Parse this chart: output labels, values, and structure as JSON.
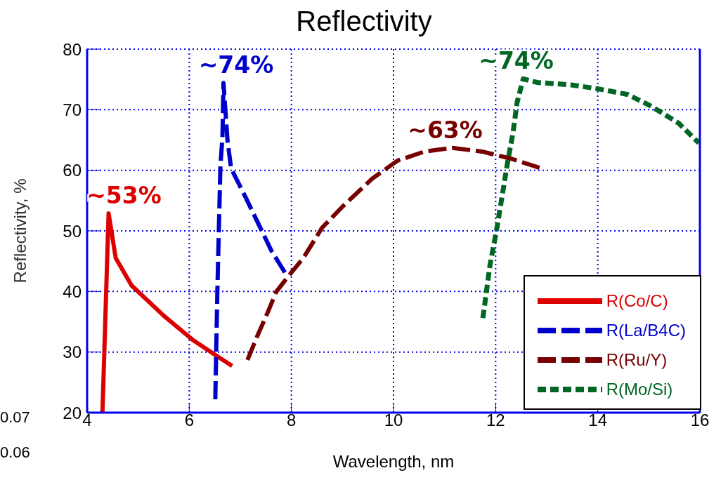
{
  "chart_data": {
    "type": "line",
    "title": "Reflectivity",
    "xlabel": "Wavelength, nm",
    "ylabel": "Reflectivity, %",
    "xlim": [
      4,
      16
    ],
    "xticks": [
      4,
      6,
      8,
      10,
      12,
      14,
      16
    ],
    "ylim": [
      20,
      80
    ],
    "yticks": [
      20,
      30,
      40,
      50,
      60,
      70,
      80
    ],
    "grid": true,
    "legend": "bottom right",
    "marker": "none",
    "series": [
      {
        "name": "R(Co/C)",
        "color": "#dd0000",
        "line_style": "solid",
        "x": [
          4.3,
          4.42,
          4.56,
          4.87,
          5.5,
          6.07,
          6.55,
          6.84
        ],
        "values": [
          20,
          52.9,
          45.5,
          41,
          36,
          32,
          29.3,
          27.7
        ]
      },
      {
        "name": "R(La/B4C)",
        "color": "#0000cc",
        "line_style": "dashed",
        "x": [
          6.51,
          6.55,
          6.61,
          6.65,
          6.67,
          6.75,
          6.82,
          7.1,
          7.61,
          7.89
        ],
        "values": [
          22.2,
          40,
          60.7,
          65.5,
          74.4,
          64.8,
          60.3,
          55.6,
          46.7,
          42.9
        ]
      },
      {
        "name": "R(Ru/Y)",
        "color": "#770000",
        "line_style": "dashed",
        "x": [
          7.14,
          7.33,
          7.55,
          7.7,
          7.93,
          8.24,
          8.6,
          9.0,
          9.58,
          10.08,
          10.61,
          11.15,
          11.73,
          12.31,
          12.9
        ],
        "values": [
          28.7,
          32.6,
          36.8,
          39.9,
          42.4,
          45.6,
          50.5,
          54,
          58.6,
          61.6,
          63.1,
          63.7,
          63.1,
          61.9,
          60.3
        ]
      },
      {
        "name": "R(Mo/Si)",
        "color": "#006622",
        "line_style": "dotted",
        "x": [
          11.75,
          11.89,
          12.02,
          12.13,
          12.24,
          12.34,
          12.42,
          12.54,
          12.81,
          13.48,
          13.97,
          14.59,
          15.04,
          15.58,
          15.98
        ],
        "values": [
          35.6,
          44.4,
          50.2,
          55.9,
          61.6,
          66.2,
          71.2,
          75.1,
          74.5,
          74.1,
          73.5,
          72.5,
          70.6,
          67.8,
          64.5
        ]
      }
    ],
    "annotations": [
      "~53%",
      "~74%",
      "~63%",
      "~74%",
      "0.07",
      "0.06"
    ]
  }
}
